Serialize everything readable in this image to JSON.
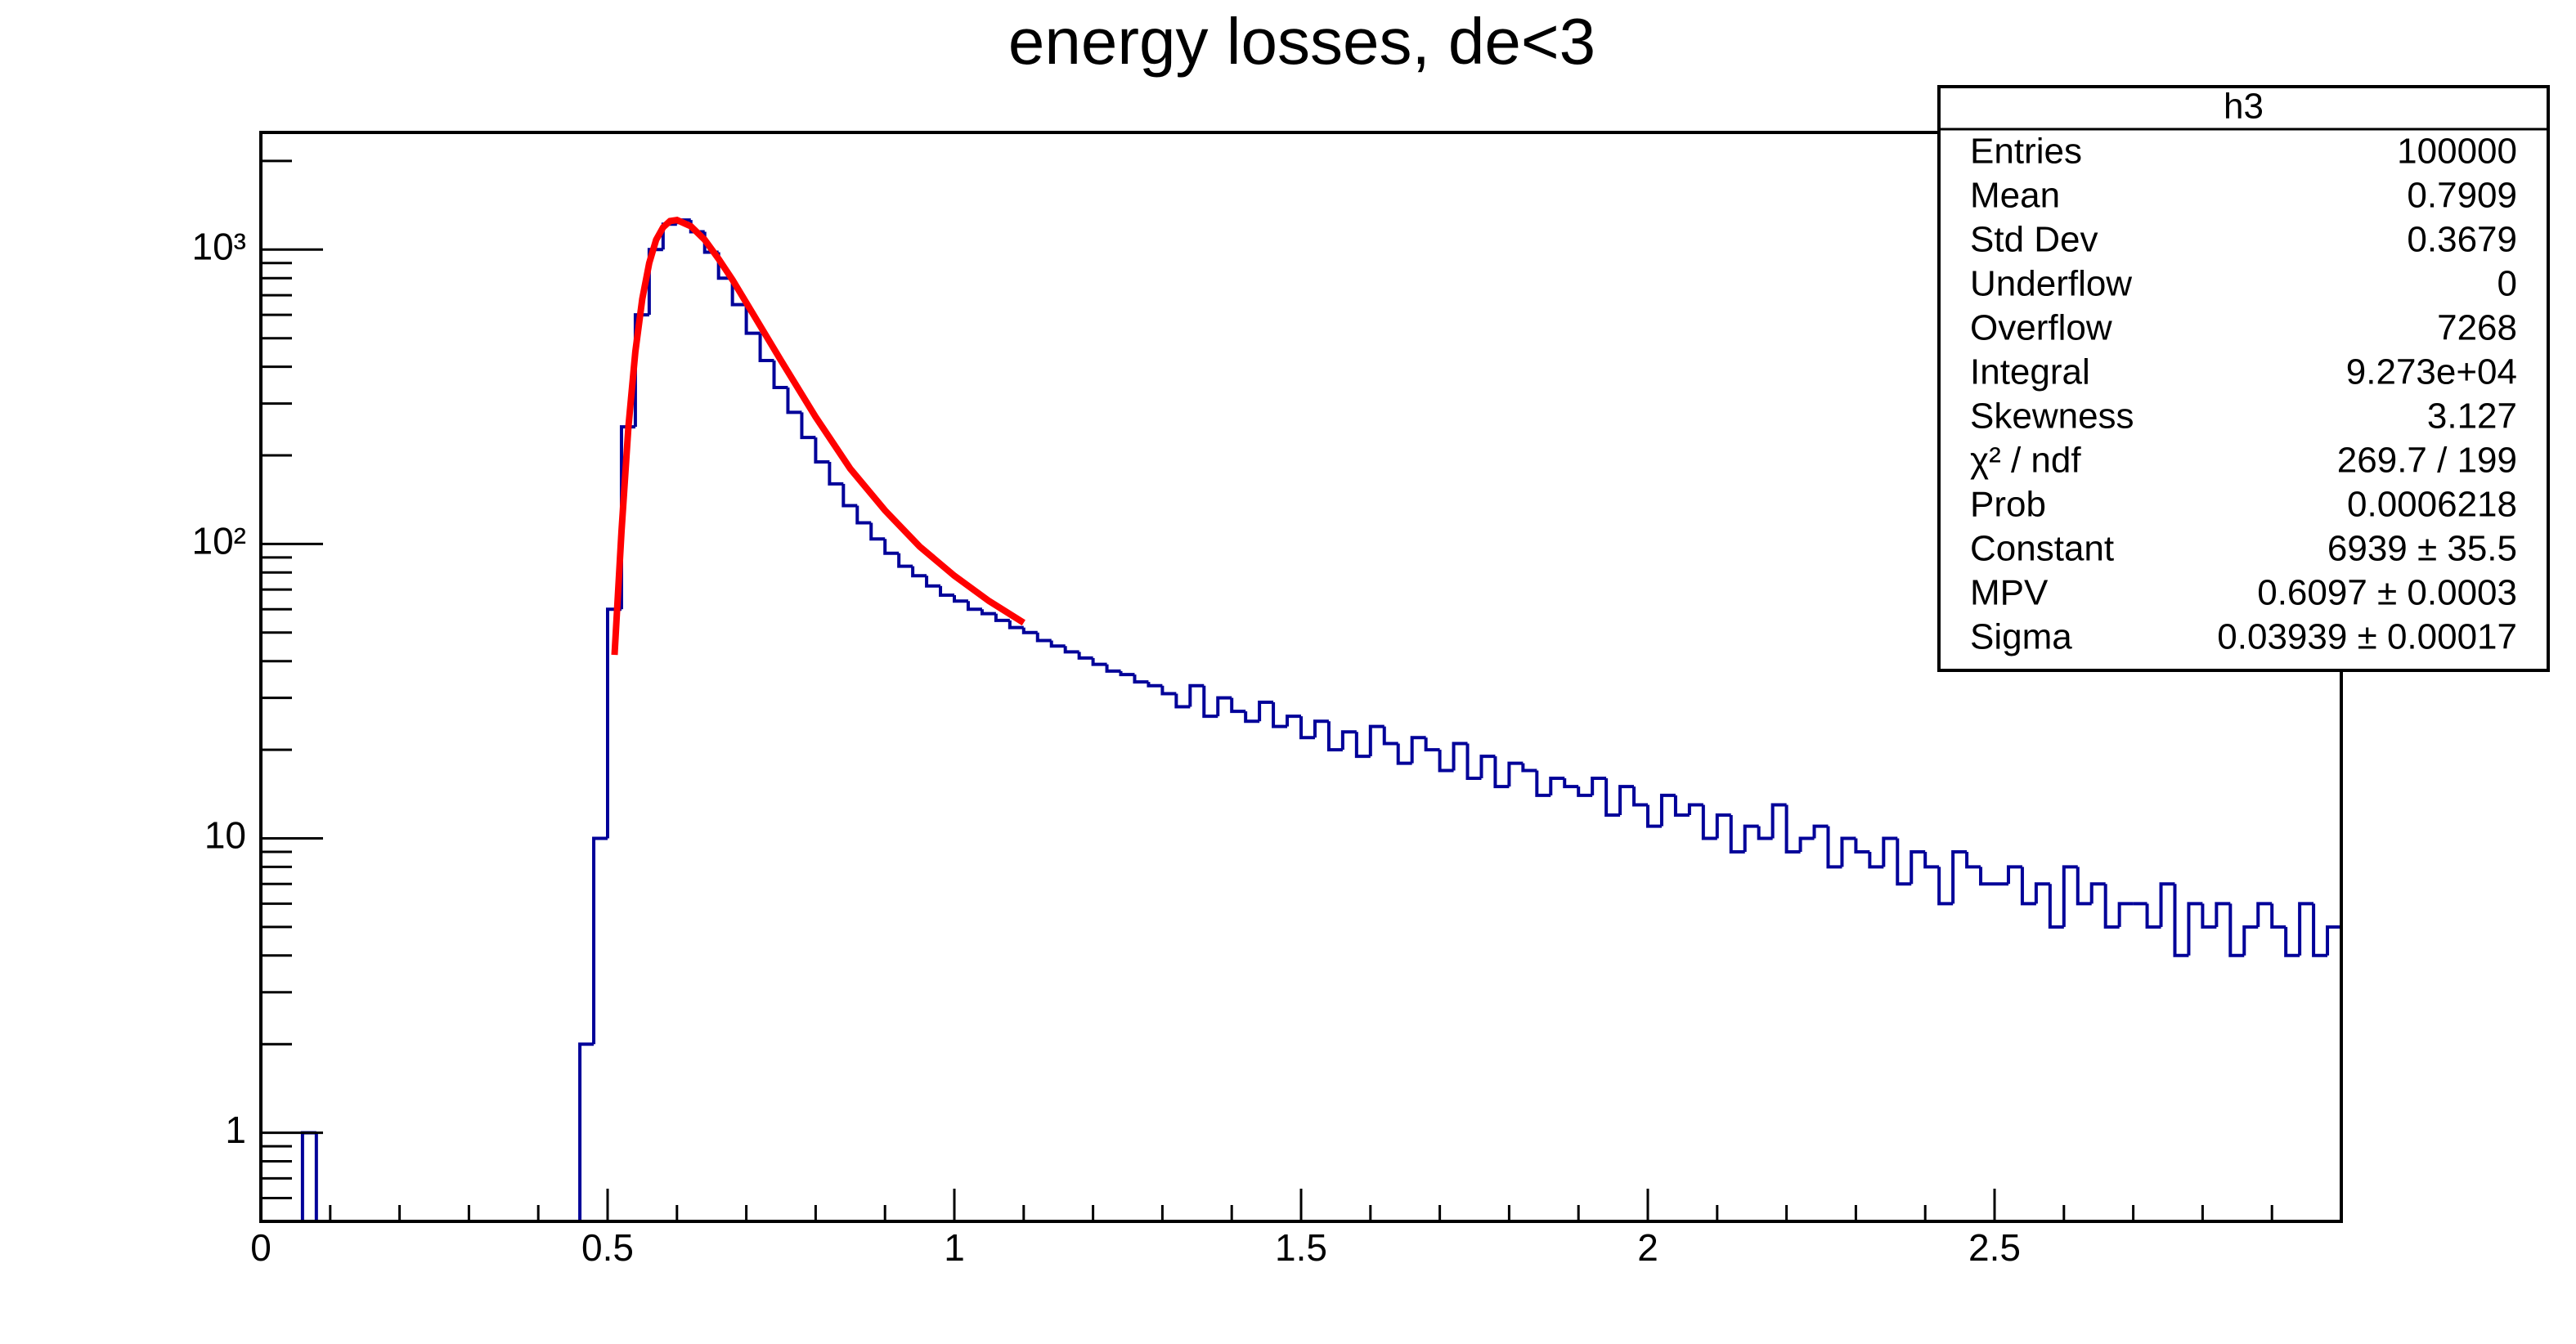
{
  "chart_data": {
    "type": "histogram",
    "title": "energy losses, de<3",
    "log_y": true,
    "color": "#000099",
    "xlim": [
      0,
      3
    ],
    "ylim": [
      0.5,
      2500
    ],
    "xticks": [
      0,
      0.5,
      1,
      1.5,
      2,
      2.5
    ],
    "xminorticks": [
      0.1,
      0.2,
      0.3,
      0.4,
      0.6,
      0.7,
      0.8,
      0.9,
      1.1,
      1.2,
      1.3,
      1.4,
      1.6,
      1.7,
      1.8,
      1.9,
      2.1,
      2.2,
      2.3,
      2.4,
      2.6,
      2.7,
      2.8,
      2.9
    ],
    "yticks": [
      1,
      10,
      {
        "value": 100,
        "label": "10²"
      },
      {
        "value": 1000,
        "label": "10³"
      }
    ],
    "yminorticks": [
      0.6,
      0.7,
      0.8,
      0.9,
      2,
      3,
      4,
      5,
      6,
      7,
      8,
      9,
      20,
      30,
      40,
      50,
      60,
      70,
      80,
      90,
      200,
      300,
      400,
      500,
      600,
      700,
      800,
      900,
      2000
    ],
    "bins": [
      0,
      0.02,
      0.04,
      0.06,
      0.08,
      0.1,
      0.12,
      0.14,
      0.16,
      0.18,
      0.2,
      0.22,
      0.24,
      0.26,
      0.28,
      0.3,
      0.32,
      0.34,
      0.36,
      0.38,
      0.4,
      0.42,
      0.44,
      0.46,
      0.48,
      0.5,
      0.52,
      0.54,
      0.56,
      0.58,
      0.6,
      0.62,
      0.64,
      0.66,
      0.68,
      0.7,
      0.72,
      0.74,
      0.76,
      0.78,
      0.8,
      0.82,
      0.84,
      0.86,
      0.88,
      0.9,
      0.92,
      0.94,
      0.96,
      0.98,
      1,
      1.02,
      1.04,
      1.06,
      1.08,
      1.1,
      1.12,
      1.14,
      1.16,
      1.18,
      1.2,
      1.22,
      1.24,
      1.26,
      1.28,
      1.3,
      1.32,
      1.34,
      1.36,
      1.38,
      1.4,
      1.42,
      1.44,
      1.46,
      1.48,
      1.5,
      1.52,
      1.54,
      1.56,
      1.58,
      1.6,
      1.62,
      1.64,
      1.66,
      1.68,
      1.7,
      1.72,
      1.74,
      1.76,
      1.78,
      1.8,
      1.82,
      1.84,
      1.86,
      1.88,
      1.9,
      1.92,
      1.94,
      1.96,
      1.98,
      2,
      2.02,
      2.04,
      2.06,
      2.08,
      2.1,
      2.12,
      2.14,
      2.16,
      2.18,
      2.2,
      2.22,
      2.24,
      2.26,
      2.28,
      2.3,
      2.32,
      2.34,
      2.36,
      2.38,
      2.4,
      2.42,
      2.44,
      2.46,
      2.48,
      2.5,
      2.52,
      2.54,
      2.56,
      2.58,
      2.6,
      2.62,
      2.64,
      2.66,
      2.68,
      2.7,
      2.72,
      2.74,
      2.76,
      2.78,
      2.8,
      2.82,
      2.84,
      2.86,
      2.88,
      2.9,
      2.92,
      2.94,
      2.96,
      2.98,
      3
    ],
    "values": [
      0,
      0,
      0,
      1,
      0,
      0,
      0,
      0,
      0,
      0,
      0,
      0,
      0,
      0,
      0,
      0,
      0,
      0,
      0,
      0,
      0,
      0,
      0,
      2,
      10,
      60,
      250,
      600,
      1000,
      1220,
      1260,
      1150,
      980,
      800,
      650,
      520,
      420,
      340,
      280,
      230,
      190,
      160,
      135,
      118,
      104,
      93,
      84,
      78,
      72,
      67,
      64,
      60,
      58,
      55,
      52,
      50,
      47,
      45,
      43,
      41,
      39,
      37,
      36,
      34,
      33,
      31,
      28,
      33,
      26,
      30,
      27,
      25,
      29,
      24,
      26,
      22,
      25,
      20,
      23,
      19,
      24,
      21,
      18,
      22,
      20,
      17,
      21,
      16,
      19,
      15,
      18,
      17,
      14,
      16,
      15,
      14,
      16,
      12,
      15,
      13,
      11,
      14,
      12,
      13,
      10,
      12,
      9,
      11,
      10,
      13,
      9,
      10,
      11,
      8,
      10,
      9,
      8,
      10,
      7,
      9,
      8,
      6,
      9,
      8,
      7,
      7,
      8,
      6,
      7,
      5,
      8,
      6,
      7,
      5,
      6,
      6,
      5,
      7,
      4,
      6,
      5,
      6,
      4,
      5,
      6,
      5,
      4,
      6,
      4,
      5
    ],
    "fit": {
      "color": "#ff0000",
      "x": [
        0.51,
        0.52,
        0.53,
        0.54,
        0.55,
        0.56,
        0.57,
        0.58,
        0.59,
        0.6,
        0.62,
        0.64,
        0.66,
        0.68,
        0.7,
        0.75,
        0.8,
        0.85,
        0.9,
        0.95,
        1,
        1.05,
        1.1
      ],
      "values": [
        42,
        110,
        250,
        450,
        680,
        900,
        1080,
        1190,
        1250,
        1260,
        1200,
        1080,
        930,
        790,
        660,
        420,
        270,
        180,
        130,
        98,
        78,
        64,
        54
      ]
    },
    "stats": {
      "title": "h3",
      "rows": [
        [
          "Entries",
          "100000"
        ],
        [
          "Mean",
          "0.7909"
        ],
        [
          "Std Dev",
          "0.3679"
        ],
        [
          "Underflow",
          "0"
        ],
        [
          "Overflow",
          "7268"
        ],
        [
          "Integral",
          "9.273e+04"
        ],
        [
          "Skewness",
          "3.127"
        ],
        [
          "χ² / ndf",
          "269.7 / 199"
        ],
        [
          "Prob",
          "0.0006218"
        ],
        [
          "Constant",
          "6939 ± 35.5"
        ],
        [
          "MPV",
          "0.6097 ± 0.0003"
        ],
        [
          "Sigma",
          "0.03939 ± 0.00017"
        ]
      ]
    }
  }
}
